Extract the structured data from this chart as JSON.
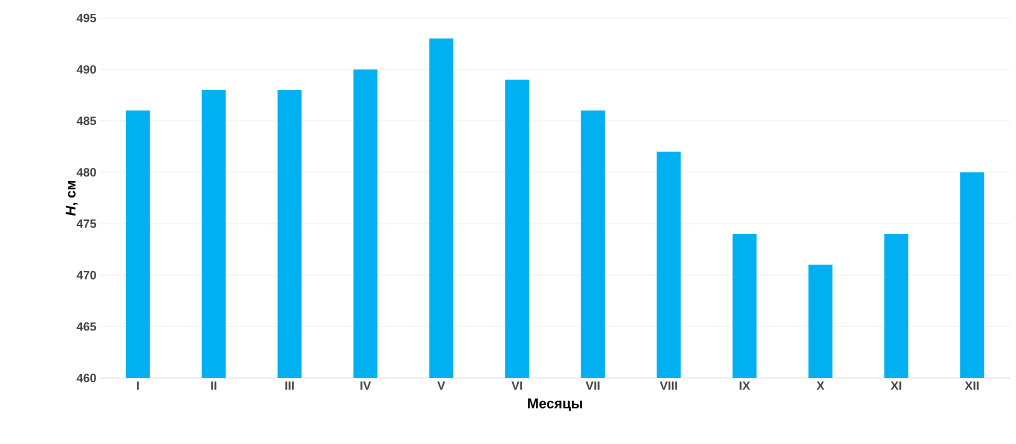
{
  "chart_data": {
    "type": "bar",
    "xlabel": "Месяцы",
    "ylabel": "*H*, см",
    "categories": [
      "I",
      "II",
      "III",
      "IV",
      "V",
      "VI",
      "VII",
      "VIII",
      "IX",
      "X",
      "XI",
      "XII"
    ],
    "values": [
      486,
      488,
      488,
      490,
      493,
      489,
      486,
      482,
      474,
      471,
      474,
      480
    ],
    "color": "#00b0f0",
    "ylim": [
      460,
      495
    ],
    "yticks": [
      460,
      465,
      470,
      475,
      480,
      485,
      490,
      495
    ],
    "grid": "y"
  }
}
